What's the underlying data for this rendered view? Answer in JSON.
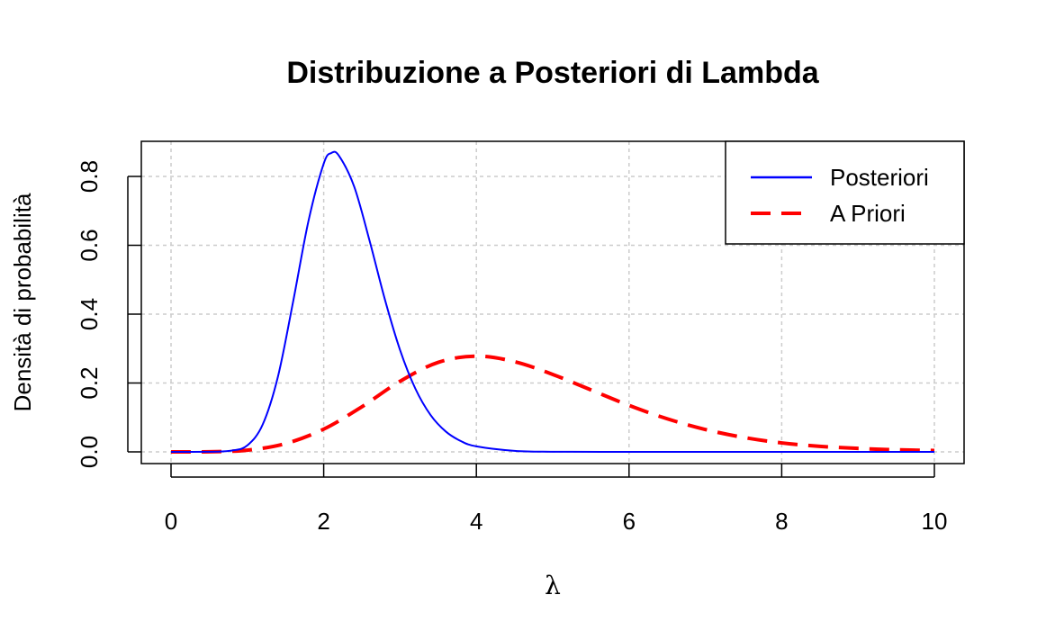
{
  "chart_data": {
    "type": "line",
    "title": "Distribuzione a Posteriori di Lambda",
    "xlabel": "λ",
    "ylabel": "Densità di probabilità",
    "xlim": [
      0,
      10
    ],
    "ylim": [
      0,
      0.9
    ],
    "x_ticks": [
      "0",
      "2",
      "4",
      "6",
      "8",
      "10"
    ],
    "y_ticks": [
      "0.0",
      "0.2",
      "0.4",
      "0.6",
      "0.8"
    ],
    "grid": true,
    "legend_position": "top-right",
    "series": [
      {
        "name": "Posteriori",
        "color": "#0000ff",
        "style": "solid",
        "x": [
          0,
          0.5,
          0.8,
          1.0,
          1.2,
          1.4,
          1.6,
          1.8,
          2.0,
          2.1,
          2.2,
          2.4,
          2.6,
          2.8,
          3.0,
          3.2,
          3.4,
          3.6,
          3.8,
          4.0,
          4.5,
          5.0,
          6.0,
          7.0,
          8.0,
          9.0,
          10.0
        ],
        "values": [
          0,
          0.0002,
          0.004,
          0.019,
          0.079,
          0.218,
          0.437,
          0.67,
          0.837,
          0.868,
          0.86,
          0.77,
          0.614,
          0.444,
          0.296,
          0.184,
          0.107,
          0.059,
          0.031,
          0.016,
          0.003,
          0.0003,
          0,
          0,
          0,
          0,
          0
        ]
      },
      {
        "name": "A Priori",
        "color": "#ff0000",
        "style": "dashed",
        "x": [
          0,
          0.5,
          1.0,
          1.5,
          2.0,
          2.5,
          3.0,
          3.5,
          4.0,
          4.5,
          5.0,
          5.5,
          6.0,
          6.5,
          7.0,
          7.5,
          8.0,
          8.5,
          9.0,
          9.5,
          10.0
        ],
        "values": [
          0,
          0.0002,
          0.005,
          0.024,
          0.066,
          0.131,
          0.205,
          0.26,
          0.278,
          0.262,
          0.225,
          0.18,
          0.135,
          0.096,
          0.065,
          0.042,
          0.026,
          0.016,
          0.01,
          0.006,
          0.004
        ]
      }
    ]
  }
}
